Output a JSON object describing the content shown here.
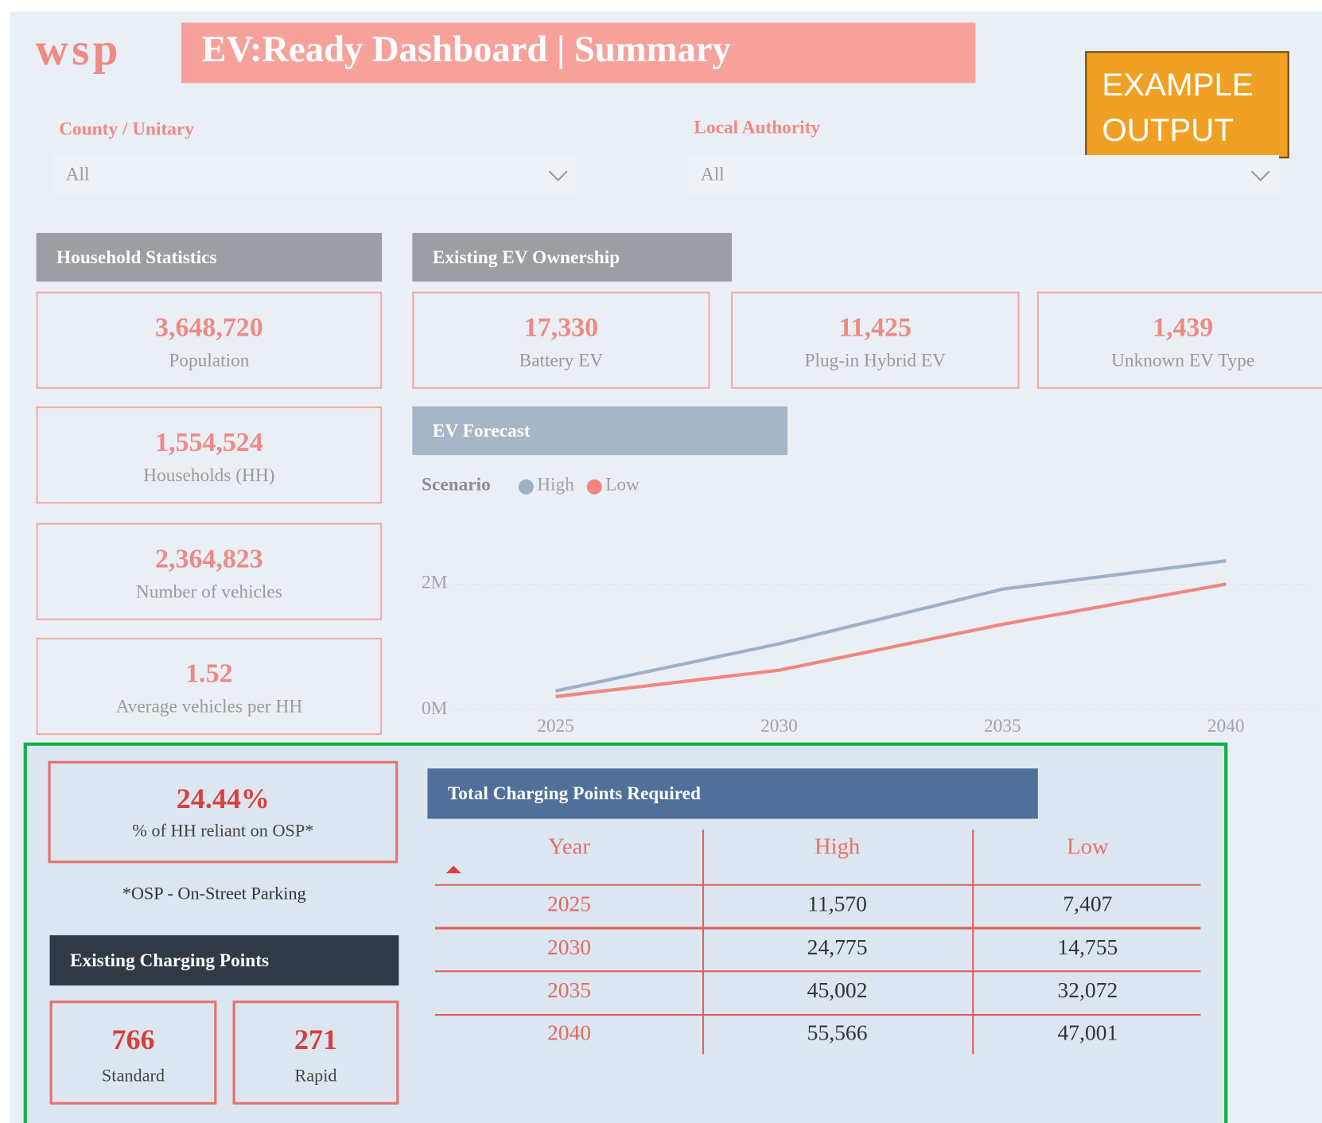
{
  "header": {
    "logo": "wsp",
    "title": "EV:Ready Dashboard | Summary",
    "badge": "EXAMPLE OUTPUT"
  },
  "filters": [
    {
      "label": "County / Unitary",
      "value": "All"
    },
    {
      "label": "Local Authority",
      "value": "All"
    }
  ],
  "household": {
    "title": "Household Statistics",
    "cards": [
      {
        "value": "3,648,720",
        "label": "Population"
      },
      {
        "value": "1,554,524",
        "label": "Households (HH)"
      },
      {
        "value": "2,364,823",
        "label": "Number of vehicles"
      },
      {
        "value": "1.52",
        "label": "Average vehicles per HH"
      }
    ]
  },
  "ownership": {
    "title": "Existing EV Ownership",
    "cards": [
      {
        "value": "17,330",
        "label": "Battery EV"
      },
      {
        "value": "11,425",
        "label": "Plug-in Hybrid EV"
      },
      {
        "value": "1,439",
        "label": "Unknown EV Type"
      }
    ]
  },
  "forecast": {
    "title": "EV Forecast",
    "chart_data": {
      "type": "line",
      "legend_title": "Scenario",
      "x": [
        2025,
        2030,
        2035,
        2040
      ],
      "series": [
        {
          "name": "High",
          "color": "#9fb1c4",
          "values": [
            300000,
            1050000,
            1920000,
            2370000
          ]
        },
        {
          "name": "Low",
          "color": "#f08880",
          "values": [
            210000,
            630000,
            1360000,
            2000000
          ]
        }
      ],
      "xlim": [
        2022,
        2042
      ],
      "xticks": [
        2025,
        2030,
        2035,
        2040
      ],
      "ylim": [
        0,
        2600000
      ],
      "yticks": [
        {
          "value": 0,
          "label": "0M"
        },
        {
          "value": 2000000,
          "label": "2M"
        }
      ],
      "grid": true
    }
  },
  "osp": {
    "value": "24.44%",
    "label": "% of HH reliant on OSP*",
    "note": "*OSP - On-Street Parking"
  },
  "charging": {
    "title": "Existing Charging Points",
    "cards": [
      {
        "value": "766",
        "label": "Standard"
      },
      {
        "value": "271",
        "label": "Rapid"
      }
    ]
  },
  "table": {
    "title": "Total Charging Points Required",
    "columns": [
      "Year",
      "High",
      "Low"
    ],
    "rows": [
      [
        "2025",
        "11,570",
        "7,407"
      ],
      [
        "2030",
        "24,775",
        "14,755"
      ],
      [
        "2035",
        "45,002",
        "32,072"
      ],
      [
        "2040",
        "55,566",
        "47,001"
      ]
    ]
  }
}
